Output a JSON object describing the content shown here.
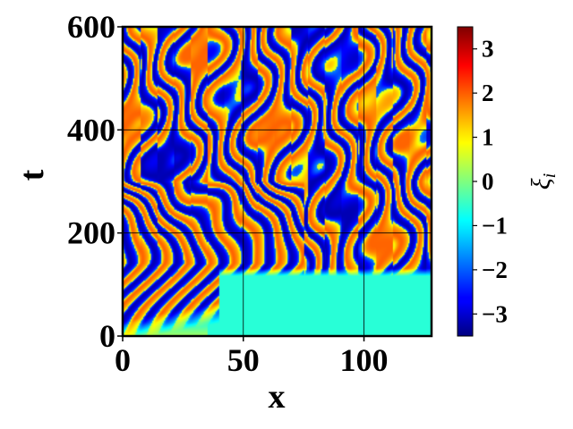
{
  "chart_data": {
    "type": "heatmap",
    "title": "",
    "xlabel": "x",
    "ylabel": "t",
    "xlim": [
      0,
      128
    ],
    "ylim": [
      0,
      600
    ],
    "xticks": [
      0,
      50,
      100
    ],
    "yticks": [
      0,
      200,
      400,
      600
    ],
    "xtick_labels": [
      "0",
      "50",
      "100"
    ],
    "ytick_labels": [
      "0",
      "200",
      "400",
      "600"
    ],
    "grid": true,
    "colormap": "jet",
    "colorbar": {
      "label": "ξ_i",
      "label_base": "ξ",
      "label_sub": "i",
      "vmin": -3.5,
      "vmax": 3.5,
      "ticks": [
        3,
        2,
        1,
        0,
        -1,
        -2,
        -3
      ],
      "tick_labels": [
        "3",
        "2",
        "1",
        "0",
        "−1",
        "−2",
        "−3"
      ]
    },
    "pattern_description_values": {
      "background_level": -0.6,
      "stripe_amplitude": 3.2
    }
  }
}
